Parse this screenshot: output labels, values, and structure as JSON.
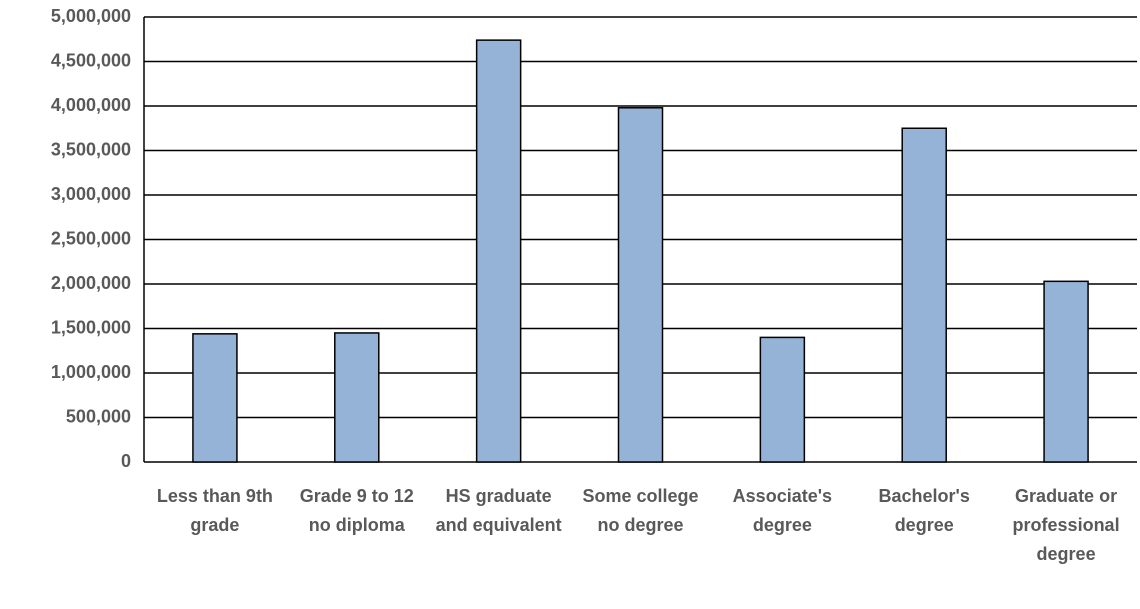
{
  "chart_data": {
    "type": "bar",
    "categories": [
      "Less than 9th grade",
      "Grade 9 to 12 no diploma",
      "HS graduate and equivalent",
      "Some college no degree",
      "Associate's degree",
      "Bachelor's degree",
      "Graduate or professional degree"
    ],
    "values": [
      1440000,
      1450000,
      4740000,
      3980000,
      1400000,
      3750000,
      2030000
    ],
    "color": "#95b3d7",
    "ylim": [
      0,
      5000000
    ],
    "yticks": [
      0,
      {
        "value": 500000,
        "label": "500,000"
      },
      {
        "value": 1000000,
        "label": "1,000,000"
      },
      {
        "value": 1500000,
        "label": "1,500,000"
      },
      {
        "value": 2000000,
        "label": "2,000,000"
      },
      {
        "value": 2500000,
        "label": "2,500,000"
      },
      {
        "value": 3000000,
        "label": "3,000,000"
      },
      {
        "value": 3500000,
        "label": "3,500,000"
      },
      {
        "value": 4000000,
        "label": "4,000,000"
      },
      {
        "value": 4500000,
        "label": "4,500,000"
      },
      {
        "value": 5000000,
        "label": "5,000,000"
      }
    ],
    "grid": true
  }
}
